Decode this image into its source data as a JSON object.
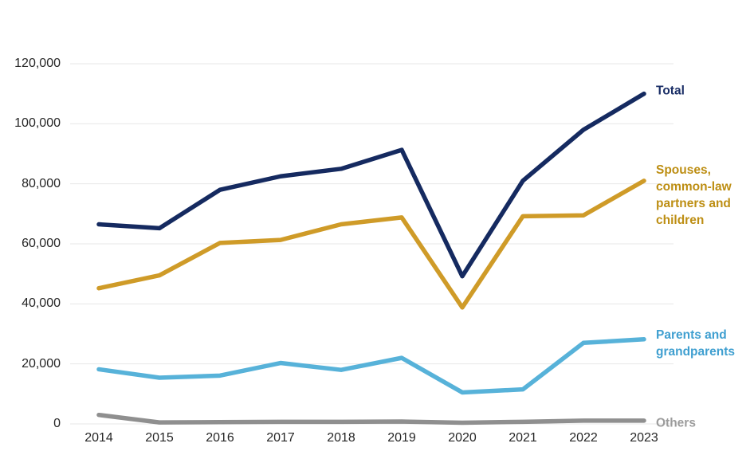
{
  "chart_data": {
    "type": "line",
    "x_labels": [
      "2014",
      "2015",
      "2016",
      "2017",
      "2018",
      "2019",
      "2020",
      "2021",
      "2022",
      "2023"
    ],
    "y_axis": {
      "min": 0,
      "max": 120000,
      "ticks": [
        0,
        20000,
        40000,
        60000,
        80000,
        100000,
        120000
      ],
      "tick_labels": [
        "0",
        "20,000",
        "40,000",
        "60,000",
        "80,000",
        "100,000",
        "120,000"
      ]
    },
    "grid": "horizontal-lines-only",
    "gridline_color": "#e7e7e7",
    "axis_text_color": "#262626",
    "legend_position": "right-of-line-ends",
    "series": [
      {
        "name": "Total",
        "label_lines": [
          "Total"
        ],
        "color": "#152a60",
        "label_color": "#1a2e66",
        "label_dy": -4,
        "values": [
          66500,
          65200,
          78000,
          82500,
          85000,
          91300,
          49200,
          81000,
          98000,
          110000
        ]
      },
      {
        "name": "Spouses, common-law partners and children",
        "label_lines": [
          "Spouses,",
          "common-law",
          "partners and",
          "children"
        ],
        "color": "#cf9b28",
        "label_color": "#bd8e13",
        "label_dy": 18,
        "values": [
          45200,
          49500,
          60300,
          61300,
          66500,
          68800,
          38800,
          69200,
          69500,
          81000
        ]
      },
      {
        "name": "Parents and grandparents",
        "label_lines": [
          "Parents and",
          "grandparents"
        ],
        "color": "#57b2d9",
        "label_color": "#3f9fd0",
        "label_dy": 5,
        "values": [
          18200,
          15400,
          16100,
          20300,
          18000,
          22000,
          10500,
          11500,
          27000,
          28200
        ]
      },
      {
        "name": "Others",
        "label_lines": [
          "Others"
        ],
        "color": "#8f8f8f",
        "label_color": "#9c9c9c",
        "label_dy": 3,
        "values": [
          3000,
          500,
          600,
          700,
          700,
          800,
          400,
          700,
          1100,
          1100
        ]
      }
    ]
  }
}
